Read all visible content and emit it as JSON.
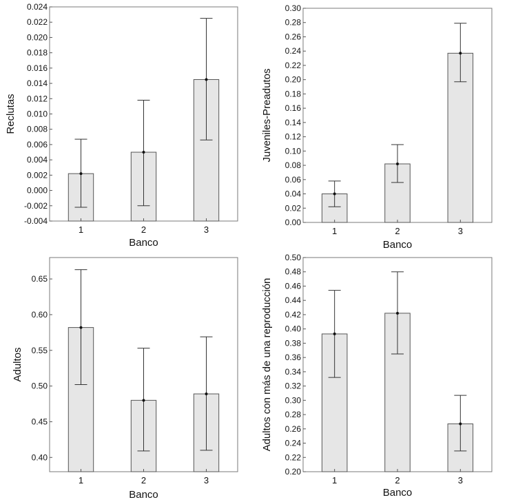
{
  "chart_data": [
    {
      "type": "bar",
      "ylabel": "Reclutas",
      "xlabel": "Banco",
      "categories": [
        "1",
        "2",
        "3"
      ],
      "values": [
        0.0022,
        0.005,
        0.0145
      ],
      "err_low": [
        -0.0022,
        -0.002,
        0.0066
      ],
      "err_high": [
        0.0067,
        0.0118,
        0.0225
      ],
      "ylim": [
        -0.004,
        0.024
      ],
      "yticks": [
        -0.004,
        -0.002,
        0.0,
        0.002,
        0.004,
        0.006,
        0.008,
        0.01,
        0.012,
        0.014,
        0.016,
        0.018,
        0.02,
        0.022,
        0.024
      ],
      "ytick_labels": [
        "-0.004",
        "-0.002",
        "0.000",
        "0.002",
        "0.004",
        "0.006",
        "0.008",
        "0.010",
        "0.012",
        "0.014",
        "0.016",
        "0.018",
        "0.020",
        "0.022",
        "0.024"
      ]
    },
    {
      "type": "bar",
      "ylabel": "Juveniles-Preadutos",
      "xlabel": "Banco",
      "categories": [
        "1",
        "2",
        "3"
      ],
      "values": [
        0.04,
        0.082,
        0.237
      ],
      "err_low": [
        0.022,
        0.056,
        0.197
      ],
      "err_high": [
        0.058,
        0.109,
        0.279
      ],
      "ylim": [
        0.0,
        0.3
      ],
      "yticks": [
        0.0,
        0.02,
        0.04,
        0.06,
        0.08,
        0.1,
        0.12,
        0.14,
        0.16,
        0.18,
        0.2,
        0.22,
        0.24,
        0.26,
        0.28,
        0.3
      ],
      "ytick_labels": [
        "0.00",
        "0.02",
        "0.04",
        "0.06",
        "0.08",
        "0.10",
        "0.12",
        "0.14",
        "0.16",
        "0.18",
        "0.20",
        "0.22",
        "0.24",
        "0.26",
        "0.28",
        "0.30"
      ]
    },
    {
      "type": "bar",
      "ylabel": "Adultos",
      "xlabel": "Banco",
      "categories": [
        "1",
        "2",
        "3"
      ],
      "values": [
        0.582,
        0.48,
        0.489
      ],
      "err_low": [
        0.502,
        0.409,
        0.41
      ],
      "err_high": [
        0.663,
        0.553,
        0.569
      ],
      "ylim": [
        0.38,
        0.68
      ],
      "yticks": [
        0.4,
        0.45,
        0.5,
        0.55,
        0.6,
        0.65
      ],
      "ytick_labels": [
        "0.40",
        "0.45",
        "0.50",
        "0.55",
        "0.60",
        "0.65"
      ]
    },
    {
      "type": "bar",
      "ylabel": "Adultos con más de una reproducción",
      "xlabel": "Banco",
      "categories": [
        "1",
        "2",
        "3"
      ],
      "values": [
        0.393,
        0.422,
        0.267
      ],
      "err_low": [
        0.332,
        0.365,
        0.229
      ],
      "err_high": [
        0.454,
        0.48,
        0.307
      ],
      "ylim": [
        0.2,
        0.5
      ],
      "yticks": [
        0.2,
        0.22,
        0.24,
        0.26,
        0.28,
        0.3,
        0.32,
        0.34,
        0.36,
        0.38,
        0.4,
        0.42,
        0.44,
        0.46,
        0.48,
        0.5
      ],
      "ytick_labels": [
        "0.20",
        "0.22",
        "0.24",
        "0.26",
        "0.28",
        "0.30",
        "0.32",
        "0.34",
        "0.36",
        "0.38",
        "0.40",
        "0.42",
        "0.44",
        "0.46",
        "0.48",
        "0.50"
      ]
    }
  ]
}
